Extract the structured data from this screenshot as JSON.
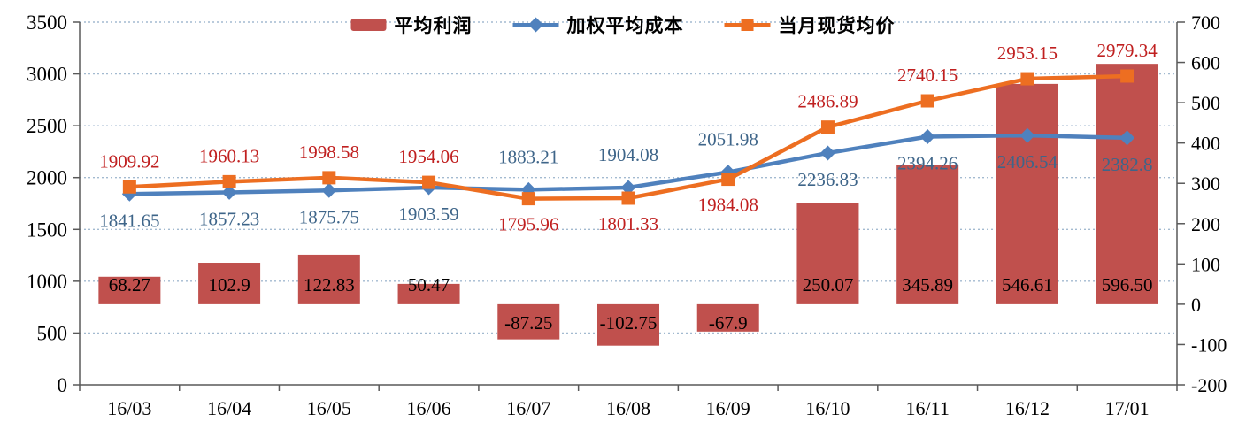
{
  "chart_data": {
    "type": "bar",
    "subtype": "combo-bar-line-dual-axis",
    "title": "",
    "categories": [
      "16/03",
      "16/04",
      "16/05",
      "16/06",
      "16/07",
      "16/08",
      "16/09",
      "16/10",
      "16/11",
      "16/12",
      "17/01"
    ],
    "series": [
      {
        "key": "average-profit",
        "name": "平均利润",
        "type": "bar",
        "axis": "right",
        "color": "#C0504D",
        "label_color": "#000000",
        "values": [
          68.27,
          102.9,
          122.83,
          50.47,
          -87.25,
          -102.75,
          -67.9,
          250.07,
          345.89,
          546.61,
          596.5
        ],
        "labels": [
          "68.27",
          "102.9",
          "122.83",
          "50.47",
          "-87.25",
          "-102.75",
          "-67.9",
          "250.07",
          "345.89",
          "546.61",
          "596.50"
        ],
        "label_position": "inside-base"
      },
      {
        "key": "weighted-average-cost",
        "name": "加权平均成本",
        "type": "line",
        "axis": "left",
        "color": "#4F81BD",
        "marker": "diamond",
        "label_color": "#3E6589",
        "values": [
          1841.65,
          1857.23,
          1875.75,
          1903.59,
          1883.21,
          1904.08,
          2051.98,
          2236.83,
          2394.26,
          2406.54,
          2382.8
        ],
        "labels": [
          "1841.65",
          "1857.23",
          "1875.75",
          "1903.59",
          "1883.21",
          "1904.08",
          "2051.98",
          "2236.83",
          "2394.26",
          "2406.54",
          "2382.8"
        ],
        "label_positions": [
          "below",
          "below",
          "below",
          "below",
          "above",
          "above",
          "above",
          "below",
          "below",
          "below",
          "below"
        ],
        "label_offsets": {
          "above": -30,
          "below": 37
        }
      },
      {
        "key": "spot-average-price",
        "name": "当月现货均价",
        "type": "line",
        "axis": "left",
        "color": "#ED6E21",
        "marker": "square",
        "label_color": "#C02020",
        "values": [
          1909.92,
          1960.13,
          1998.58,
          1954.06,
          1795.96,
          1801.33,
          1984.08,
          2486.89,
          2740.15,
          2953.15,
          2979.34
        ],
        "labels": [
          "1909.92",
          "1960.13",
          "1998.58",
          "1954.06",
          "1795.96",
          "1801.33",
          "1984.08",
          "2486.89",
          "2740.15",
          "2953.15",
          "2979.34"
        ],
        "label_positions": [
          "above",
          "above",
          "above",
          "above",
          "below",
          "below",
          "below",
          "above",
          "above",
          "above",
          "above"
        ],
        "label_offsets": {
          "above": -22,
          "below": 36
        }
      }
    ],
    "axes": {
      "left": {
        "min": 0,
        "max": 3500,
        "step": 500,
        "tick_labels": [
          "3500",
          "3000",
          "2500",
          "2000",
          "1500",
          "1000",
          "500",
          "0"
        ]
      },
      "right": {
        "min": -200,
        "max": 700,
        "step": 100,
        "tick_labels": [
          "700",
          "600",
          "500",
          "400",
          "300",
          "200",
          "100",
          "0",
          "-100",
          "-200"
        ]
      }
    },
    "grid": {
      "show": true,
      "color": "#A3BAD0",
      "style": "dotted"
    },
    "axis_color": "#595959",
    "legend_position": "top-center",
    "background": "#FFFFFF"
  }
}
